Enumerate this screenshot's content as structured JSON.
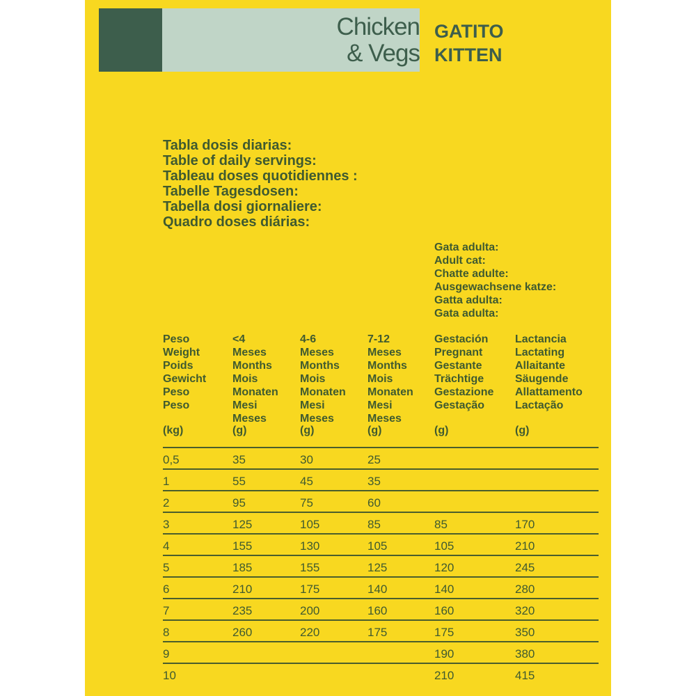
{
  "header": {
    "product_line1": "Chicken",
    "product_line2": "& Vegs",
    "stage_line1": "GATITO",
    "stage_line2": "KITTEN"
  },
  "colors": {
    "background": "#f8d820",
    "dark_green": "#3d5e4c",
    "light_green": "#c0d5c7",
    "text": "#3f5a30"
  },
  "titles": [
    "Tabla dosis diarias:",
    "Table of daily servings:",
    "Tableau doses quotidiennes :",
    "Tabelle Tagesdosen:",
    "Tabella dosi giornaliere:",
    "Quadro doses diárias:"
  ],
  "adult_cat": [
    "Gata adulta:",
    "Adult cat:",
    "Chatte adulte:",
    "Ausgewachsene katze:",
    "Gatta adulta:",
    "Gata adulta:"
  ],
  "table": {
    "columns": [
      {
        "lines": [
          "Peso",
          "Weight",
          "Poids",
          "Gewicht",
          "Peso",
          "Peso"
        ],
        "unit": "(kg)"
      },
      {
        "lines": [
          "<4",
          "Meses",
          "Months",
          "Mois",
          "Monaten",
          "Mesi",
          "Meses"
        ],
        "unit": "(g)"
      },
      {
        "lines": [
          "4-6",
          "Meses",
          "Months",
          "Mois",
          "Monaten",
          "Mesi",
          "Meses"
        ],
        "unit": "(g)"
      },
      {
        "lines": [
          "7-12",
          "Meses",
          "Months",
          "Mois",
          "Monaten",
          "Mesi",
          "Meses"
        ],
        "unit": "(g)"
      },
      {
        "lines": [
          "Gestación",
          "Pregnant",
          "Gestante",
          "Trächtige",
          "Gestazione",
          "Gestação"
        ],
        "unit": "(g)"
      },
      {
        "lines": [
          "Lactancia",
          "Lactating",
          "Allaitante",
          "Säugende",
          "Allattamento",
          "Lactação"
        ],
        "unit": "(g)"
      }
    ],
    "rows": [
      [
        "0,5",
        "35",
        "30",
        "25",
        "",
        ""
      ],
      [
        "1",
        "55",
        "45",
        "35",
        "",
        ""
      ],
      [
        "2",
        "95",
        "75",
        "60",
        "",
        ""
      ],
      [
        "3",
        "125",
        "105",
        "85",
        "85",
        "170"
      ],
      [
        "4",
        "155",
        "130",
        "105",
        "105",
        "210"
      ],
      [
        "5",
        "185",
        "155",
        "125",
        "120",
        "245"
      ],
      [
        "6",
        "210",
        "175",
        "140",
        "140",
        "280"
      ],
      [
        "7",
        "235",
        "200",
        "160",
        "160",
        "320"
      ],
      [
        "8",
        "260",
        "220",
        "175",
        "175",
        "350"
      ],
      [
        "9",
        "",
        "",
        "",
        "190",
        "380"
      ],
      [
        "10",
        "",
        "",
        "",
        "210",
        "415"
      ]
    ]
  }
}
